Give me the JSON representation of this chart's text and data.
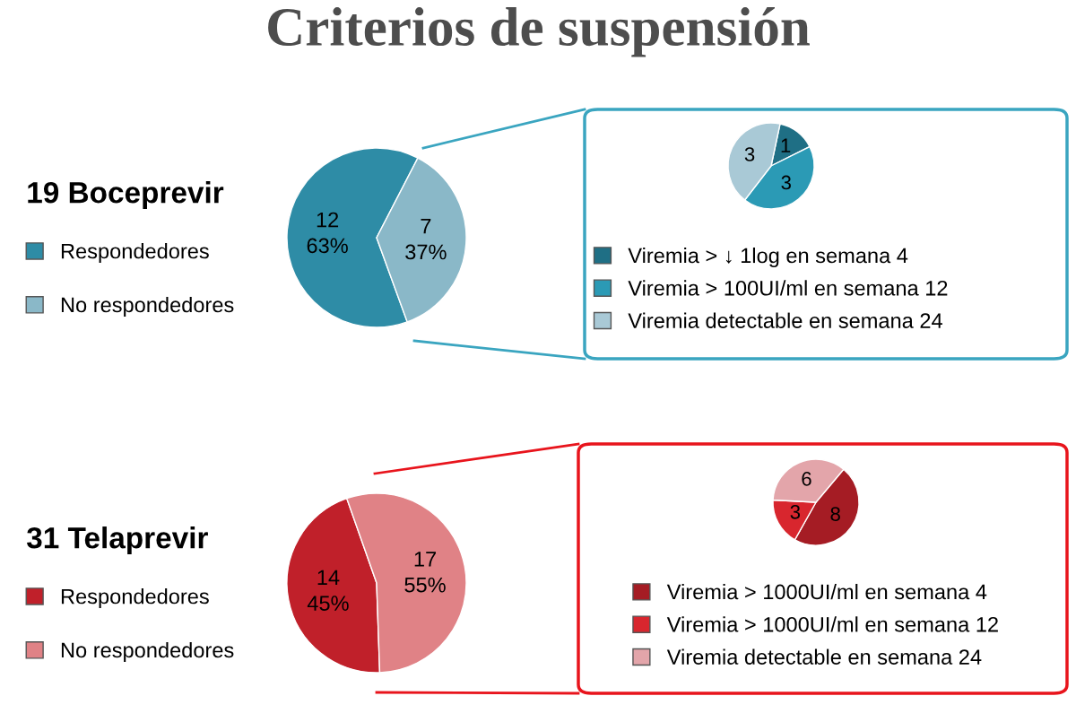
{
  "chart_data": [
    {
      "type": "pie",
      "title": "Criterios de suspensión",
      "legend_title": "19 Boceprevir",
      "categories": [
        "Respondedores",
        "No respondedores"
      ],
      "values": [
        12,
        7
      ],
      "colors": [
        "#2e8ca6",
        "#8ab8c8"
      ],
      "value_labels": [
        "12\n63%",
        "7\n37%"
      ],
      "legend": "left"
    },
    {
      "type": "pie",
      "categories": [
        "Viremia > ↓ 1log en semana 4",
        "Viremia > 100UI/ml en semana 12",
        "Viremia detectable en semana 24"
      ],
      "values": [
        1,
        3,
        3
      ],
      "colors": [
        "#1f6f85",
        "#2b9ab5",
        "#a9c9d6"
      ],
      "data_labels": true,
      "legend": "bottom"
    },
    {
      "type": "pie",
      "legend_title": "31 Telaprevir",
      "categories": [
        "Respondedores",
        "No respondedores"
      ],
      "values": [
        14,
        17
      ],
      "colors": [
        "#c0202a",
        "#e08286"
      ],
      "value_labels": [
        "14\n45%",
        "17\n55%"
      ],
      "legend": "left"
    },
    {
      "type": "pie",
      "categories": [
        "Viremia > 1000UI/ml en semana 4",
        "Viremia > 1000UI/ml en semana 12",
        "Viremia detectable en semana 24"
      ],
      "values": [
        8,
        3,
        6
      ],
      "colors": [
        "#a51c24",
        "#d8262e",
        "#e3a5aa"
      ],
      "data_labels": true,
      "legend": "bottom"
    }
  ]
}
